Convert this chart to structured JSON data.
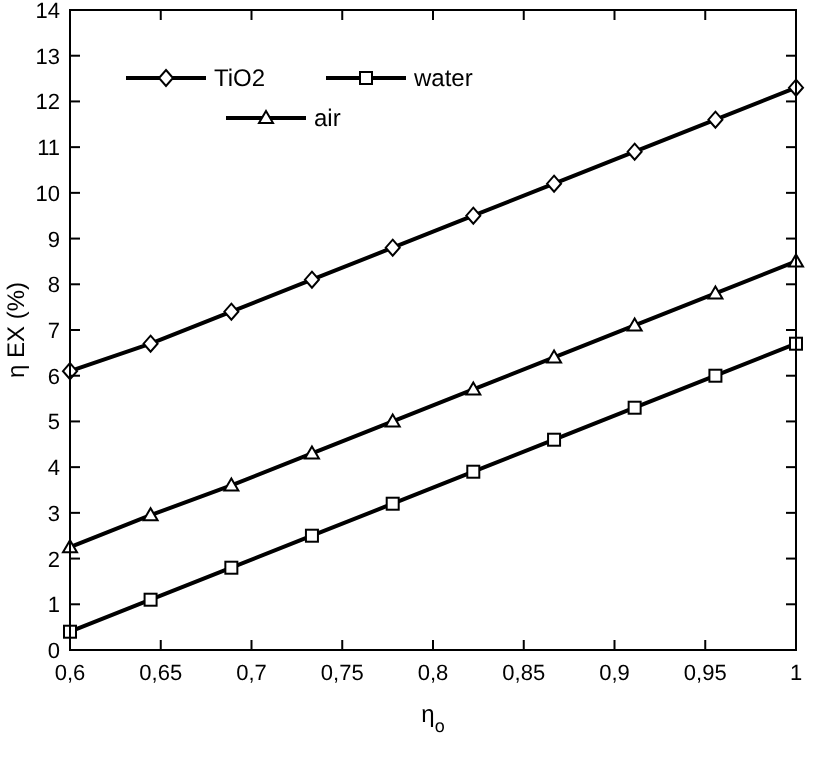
{
  "chart_data": {
    "type": "line",
    "xlabel": "η$_{o}$",
    "ylabel": "η EX (%)",
    "xlim": [
      0.6,
      1
    ],
    "xticks": [
      {
        "value": 0.6,
        "label": "0,6"
      },
      {
        "value": 0.65,
        "label": "0,65"
      },
      {
        "value": 0.7,
        "label": "0,7"
      },
      {
        "value": 0.75,
        "label": "0,75"
      },
      {
        "value": 0.8,
        "label": "0,8"
      },
      {
        "value": 0.85,
        "label": "0,85"
      },
      {
        "value": 0.9,
        "label": "0,9"
      },
      {
        "value": 0.95,
        "label": "0,95"
      },
      {
        "value": 1,
        "label": "1"
      }
    ],
    "ylim": [
      0,
      14
    ],
    "yticks": [
      0,
      1,
      2,
      3,
      4,
      5,
      6,
      7,
      8,
      9,
      10,
      11,
      12,
      13,
      14
    ],
    "x": [
      0.6,
      0.6444,
      0.6889,
      0.7333,
      0.7778,
      0.8222,
      0.8667,
      0.9111,
      0.9556,
      1.0
    ],
    "legend": "top left",
    "grid": false,
    "line_style": "solid",
    "series": [
      {
        "name": "TiO2",
        "color": "#000000",
        "marker": "diamond",
        "values": [
          6.1,
          6.7,
          7.4,
          8.1,
          8.8,
          9.5,
          10.2,
          10.9,
          11.6,
          12.3
        ]
      },
      {
        "name": "water",
        "color": "#000000",
        "marker": "square",
        "values": [
          0.4,
          1.1,
          1.8,
          2.5,
          3.2,
          3.9,
          4.6,
          5.3,
          6.0,
          6.7
        ]
      },
      {
        "name": "air",
        "color": "#000000",
        "marker": "triangle",
        "values": [
          2.25,
          2.95,
          3.6,
          4.3,
          5.0,
          5.7,
          6.4,
          7.1,
          7.8,
          8.5
        ]
      }
    ]
  }
}
